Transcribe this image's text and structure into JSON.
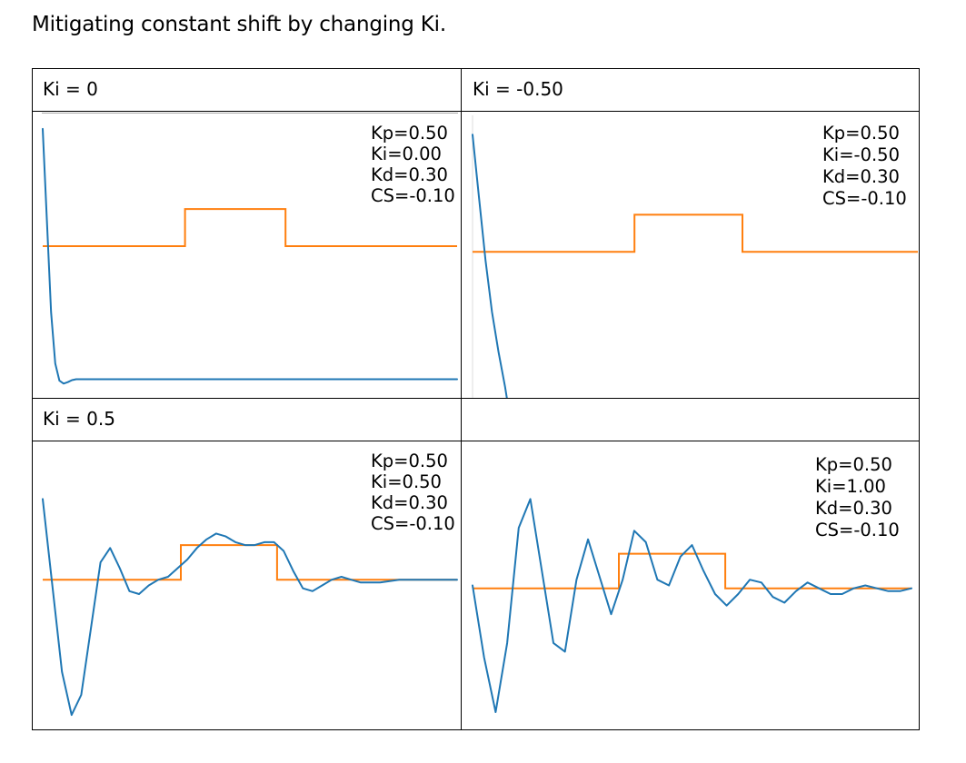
{
  "title": "Mitigating constant shift by changing Ki.",
  "table": {
    "cells": [
      {
        "header": "Ki = 0",
        "params": [
          "Kp=0.50",
          "Ki=0.00",
          "Kd=0.30",
          "CS=-0.10"
        ]
      },
      {
        "header": "Ki = -0.50",
        "params": [
          "Kp=0.50",
          "Ki=-0.50",
          "Kd=0.30",
          "CS=-0.10"
        ]
      },
      {
        "header": "Ki = 0.5",
        "params": [
          "Kp=0.50",
          "Ki=0.50",
          "Kd=0.30",
          "CS=-0.10"
        ]
      },
      {
        "header": "",
        "params": [
          "Kp=0.50",
          "Ki=1.00",
          "Kd=0.30",
          "CS=-0.10"
        ]
      }
    ]
  },
  "colors": {
    "response": "#1f77b4",
    "setpoint": "#ff7f0e"
  },
  "chart_data": [
    {
      "type": "line",
      "title": "",
      "xlabel": "",
      "ylabel": "",
      "grid": false,
      "axes": "hidden",
      "series": [
        {
          "values": [
            0.94,
            0.62,
            0.3,
            0.12,
            0.06,
            0.05,
            0.055,
            0.062,
            0.065,
            0.065,
            0.065,
            0.065,
            0.065,
            0.065,
            0.065,
            0.065,
            0.065,
            0.065,
            0.065,
            0.065,
            0.065,
            0.065,
            0.065,
            0.065,
            0.065,
            0.065,
            0.065,
            0.065,
            0.065,
            0.065,
            0.065,
            0.065,
            0.065,
            0.065,
            0.065,
            0.065,
            0.065,
            0.065,
            0.065,
            0.065,
            0.065,
            0.065,
            0.065,
            0.065,
            0.065,
            0.065,
            0.065,
            0.065,
            0.065,
            0.065,
            0.065,
            0.065,
            0.065,
            0.065,
            0.065,
            0.065,
            0.065,
            0.065,
            0.065,
            0.065,
            0.065,
            0.065,
            0.065,
            0.065,
            0.065,
            0.065,
            0.065,
            0.065,
            0.065,
            0.065,
            0.065,
            0.065,
            0.065,
            0.065,
            0.065,
            0.065,
            0.065,
            0.065,
            0.065,
            0.065,
            0.065,
            0.065,
            0.065,
            0.065,
            0.065,
            0.065,
            0.065,
            0.065,
            0.065,
            0.065,
            0.065,
            0.065,
            0.065,
            0.065,
            0.065,
            0.065,
            0.065,
            0.065,
            0.065,
            0.065
          ]
        },
        {
          "values": [
            0.53,
            0.53,
            0.53,
            0.53,
            0.53,
            0.53,
            0.53,
            0.53,
            0.53,
            0.53,
            0.53,
            0.53,
            0.53,
            0.53,
            0.53,
            0.53,
            0.53,
            0.53,
            0.53,
            0.53,
            0.53,
            0.53,
            0.53,
            0.53,
            0.53,
            0.53,
            0.53,
            0.53,
            0.53,
            0.53,
            0.53,
            0.53,
            0.53,
            0.53,
            0.66,
            0.66,
            0.66,
            0.66,
            0.66,
            0.66,
            0.66,
            0.66,
            0.66,
            0.66,
            0.66,
            0.66,
            0.66,
            0.66,
            0.66,
            0.66,
            0.66,
            0.66,
            0.66,
            0.66,
            0.66,
            0.66,
            0.66,
            0.66,
            0.53,
            0.53,
            0.53,
            0.53,
            0.53,
            0.53,
            0.53,
            0.53,
            0.53,
            0.53,
            0.53,
            0.53,
            0.53,
            0.53,
            0.53,
            0.53,
            0.53,
            0.53,
            0.53,
            0.53,
            0.53,
            0.53,
            0.53,
            0.53,
            0.53,
            0.53,
            0.53,
            0.53,
            0.53,
            0.53,
            0.53,
            0.53,
            0.53,
            0.53,
            0.53,
            0.53,
            0.53,
            0.53,
            0.53,
            0.53,
            0.53,
            0.53
          ]
        }
      ]
    },
    {
      "type": "line",
      "title": "",
      "xlabel": "",
      "ylabel": "",
      "grid": false,
      "axes": "hidden",
      "series": [
        {
          "values": [
            0.92,
            0.7,
            0.48,
            0.3,
            0.16,
            0.04,
            -0.1,
            -0.3
          ]
        },
        {
          "values": [
            0.51,
            0.51,
            0.51,
            0.51,
            0.51,
            0.51,
            0.51,
            0.51,
            0.51,
            0.51,
            0.51,
            0.51,
            0.51,
            0.51,
            0.51,
            0.51,
            0.51,
            0.51,
            0.51,
            0.51,
            0.51,
            0.51,
            0.51,
            0.51,
            0.51,
            0.51,
            0.51,
            0.51,
            0.51,
            0.51,
            0.51,
            0.51,
            0.51,
            0.51,
            0.51,
            0.51,
            0.64,
            0.64,
            0.64,
            0.64,
            0.64,
            0.64,
            0.64,
            0.64,
            0.64,
            0.64,
            0.64,
            0.64,
            0.64,
            0.64,
            0.64,
            0.64,
            0.64,
            0.64,
            0.64,
            0.64,
            0.64,
            0.64,
            0.64,
            0.64,
            0.51,
            0.51,
            0.51,
            0.51,
            0.51,
            0.51,
            0.51,
            0.51,
            0.51,
            0.51,
            0.51,
            0.51,
            0.51,
            0.51,
            0.51,
            0.51,
            0.51,
            0.51,
            0.51,
            0.51,
            0.51,
            0.51,
            0.51,
            0.51,
            0.51,
            0.51,
            0.51,
            0.51,
            0.51,
            0.51,
            0.51,
            0.51,
            0.51,
            0.51,
            0.51,
            0.51,
            0.51,
            0.51,
            0.51,
            0.51
          ]
        }
      ]
    },
    {
      "type": "line",
      "title": "",
      "xlabel": "",
      "ylabel": "",
      "grid": false,
      "axes": "hidden",
      "series": [
        {
          "values": [
            0.8,
            0.5,
            0.2,
            0.05,
            0.12,
            0.35,
            0.58,
            0.63,
            0.56,
            0.48,
            0.47,
            0.5,
            0.52,
            0.53,
            0.56,
            0.59,
            0.63,
            0.66,
            0.68,
            0.67,
            0.65,
            0.64,
            0.64,
            0.65,
            0.65,
            0.62,
            0.55,
            0.49,
            0.48,
            0.5,
            0.52,
            0.53,
            0.52,
            0.51,
            0.51,
            0.51,
            0.515,
            0.52,
            0.52,
            0.52,
            0.52,
            0.52,
            0.52,
            0.52
          ]
        },
        {
          "values": [
            0.52,
            0.52,
            0.52,
            0.52,
            0.52,
            0.52,
            0.52,
            0.52,
            0.52,
            0.52,
            0.52,
            0.52,
            0.52,
            0.52,
            0.52,
            0.52,
            0.52,
            0.52,
            0.52,
            0.52,
            0.52,
            0.52,
            0.52,
            0.52,
            0.52,
            0.52,
            0.52,
            0.52,
            0.52,
            0.52,
            0.52,
            0.52,
            0.52,
            0.64,
            0.64,
            0.64,
            0.64,
            0.64,
            0.64,
            0.64,
            0.64,
            0.64,
            0.64,
            0.64,
            0.64,
            0.64,
            0.64,
            0.64,
            0.64,
            0.64,
            0.64,
            0.64,
            0.64,
            0.64,
            0.64,
            0.64,
            0.52,
            0.52,
            0.52,
            0.52,
            0.52,
            0.52,
            0.52,
            0.52,
            0.52,
            0.52,
            0.52,
            0.52,
            0.52,
            0.52,
            0.52,
            0.52,
            0.52,
            0.52,
            0.52,
            0.52,
            0.52,
            0.52,
            0.52,
            0.52,
            0.52,
            0.52,
            0.52,
            0.52,
            0.52,
            0.52,
            0.52,
            0.52,
            0.52,
            0.52,
            0.52,
            0.52,
            0.52,
            0.52,
            0.52,
            0.52,
            0.52,
            0.52,
            0.52,
            0.52
          ]
        }
      ]
    },
    {
      "type": "line",
      "title": "",
      "xlabel": "",
      "ylabel": "",
      "grid": false,
      "axes": "hidden",
      "series": [
        {
          "values": [
            0.5,
            0.25,
            0.06,
            0.3,
            0.7,
            0.8,
            0.55,
            0.3,
            0.27,
            0.52,
            0.66,
            0.53,
            0.4,
            0.52,
            0.69,
            0.65,
            0.52,
            0.5,
            0.6,
            0.64,
            0.55,
            0.47,
            0.43,
            0.47,
            0.52,
            0.51,
            0.46,
            0.44,
            0.48,
            0.51,
            0.49,
            0.47,
            0.47,
            0.49,
            0.5,
            0.49,
            0.48,
            0.48,
            0.49
          ]
        },
        {
          "values": [
            0.49,
            0.49,
            0.49,
            0.49,
            0.49,
            0.49,
            0.49,
            0.49,
            0.49,
            0.49,
            0.49,
            0.49,
            0.49,
            0.49,
            0.49,
            0.49,
            0.49,
            0.49,
            0.49,
            0.49,
            0.49,
            0.49,
            0.49,
            0.49,
            0.49,
            0.49,
            0.49,
            0.49,
            0.49,
            0.49,
            0.49,
            0.49,
            0.49,
            0.61,
            0.61,
            0.61,
            0.61,
            0.61,
            0.61,
            0.61,
            0.61,
            0.61,
            0.61,
            0.61,
            0.61,
            0.61,
            0.61,
            0.61,
            0.61,
            0.61,
            0.61,
            0.61,
            0.61,
            0.61,
            0.61,
            0.61,
            0.61,
            0.49,
            0.49,
            0.49,
            0.49,
            0.49,
            0.49,
            0.49,
            0.49,
            0.49,
            0.49,
            0.49,
            0.49,
            0.49,
            0.49,
            0.49,
            0.49,
            0.49,
            0.49,
            0.49,
            0.49,
            0.49,
            0.49,
            0.49,
            0.49,
            0.49,
            0.49,
            0.49,
            0.49,
            0.49,
            0.49,
            0.49,
            0.49,
            0.49,
            0.49,
            0.49,
            0.49,
            0.49,
            0.49,
            0.49,
            0.49,
            0.49,
            0.49,
            0.49
          ]
        }
      ]
    }
  ]
}
